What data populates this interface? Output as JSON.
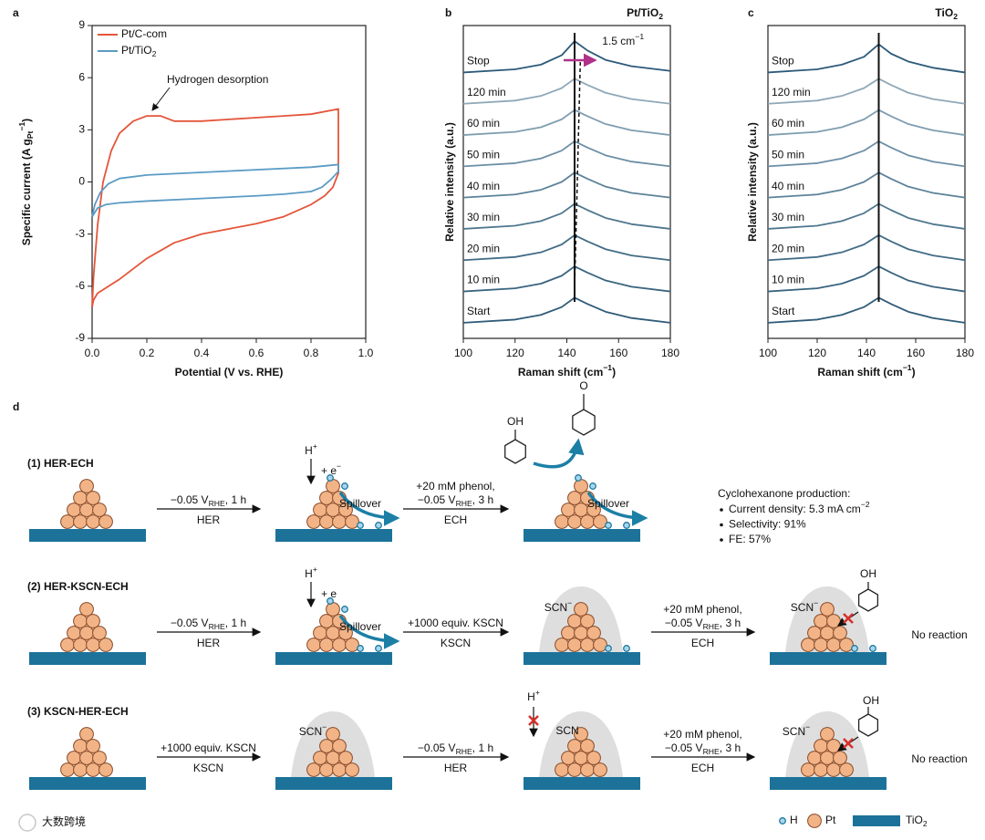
{
  "chart_data": [
    {
      "panel": "a",
      "type": "line",
      "xlabel": "Potential (V vs. RHE)",
      "ylabel": [
        "Specific current (A g",
        {
          "sub": "Pt"
        },
        {
          "sup": "−1"
        },
        ")"
      ],
      "xlim": [
        0,
        1
      ],
      "ylim": [
        -9,
        9
      ],
      "xticks": [
        {
          "value": 0,
          "label": "0.0"
        },
        0.2,
        0.4,
        0.6,
        0.8,
        {
          "value": 1,
          "label": "1.0"
        }
      ],
      "yticks": [
        -9,
        -6,
        -3,
        0,
        3,
        6,
        9
      ],
      "annotation": "Hydrogen desorption",
      "legend": "upper left",
      "series": [
        {
          "name": "Pt/C-com",
          "color": "#e4553a",
          "x": [
            0,
            0.005,
            0.02,
            0.04,
            0.07,
            0.1,
            0.15,
            0.2,
            0.25,
            0.3,
            0.4,
            0.5,
            0.6,
            0.7,
            0.8,
            0.9,
            0.9,
            0.88,
            0.85,
            0.8,
            0.7,
            0.6,
            0.5,
            0.4,
            0.3,
            0.2,
            0.1,
            0.05,
            0.02,
            0.005,
            0
          ],
          "values": [
            -7.2,
            -5.5,
            -2.5,
            0,
            1.8,
            2.8,
            3.5,
            3.8,
            3.8,
            3.5,
            3.5,
            3.6,
            3.7,
            3.8,
            3.9,
            4.2,
            0.5,
            -0.3,
            -0.8,
            -1.3,
            -2.0,
            -2.4,
            -2.7,
            -3.0,
            -3.5,
            -4.4,
            -5.6,
            -6.1,
            -6.4,
            -6.8,
            -7.2
          ]
        },
        {
          "name": [
            "Pt/TiO",
            {
              "sub": "2"
            }
          ],
          "color": "#5b9bc4",
          "x": [
            0,
            0.01,
            0.03,
            0.06,
            0.1,
            0.2,
            0.4,
            0.6,
            0.8,
            0.9,
            0.9,
            0.87,
            0.84,
            0.8,
            0.7,
            0.6,
            0.4,
            0.2,
            0.1,
            0.05,
            0.02,
            0
          ],
          "values": [
            -2.0,
            -1.3,
            -0.6,
            -0.1,
            0.2,
            0.4,
            0.55,
            0.7,
            0.85,
            1.0,
            0.6,
            0.1,
            -0.3,
            -0.55,
            -0.7,
            -0.8,
            -0.95,
            -1.1,
            -1.2,
            -1.3,
            -1.5,
            -2.0
          ]
        }
      ]
    },
    {
      "panel": "b",
      "type": "line",
      "title": [
        "Pt/TiO",
        {
          "sub": "2"
        }
      ],
      "xlabel": [
        "Raman shift (cm",
        {
          "sup": "−1"
        },
        ")"
      ],
      "ylabel": "Relative intensity (a.u.)",
      "xlim": [
        100,
        180
      ],
      "ylim": [
        0,
        10
      ],
      "xticks": [
        100,
        120,
        140,
        160,
        180
      ],
      "x": [
        100,
        120,
        130,
        138,
        143,
        148,
        155,
        165,
        180
      ],
      "reference_peak": 143,
      "shifted_peak": 144.5,
      "shift_label": [
        "1.5 cm",
        {
          "sup": "−1"
        }
      ],
      "series": [
        {
          "name": "Start",
          "color": "#2f5b78",
          "values": [
            0.5,
            0.6,
            0.75,
            1.0,
            1.3,
            1.1,
            0.85,
            0.65,
            0.5
          ]
        },
        {
          "name": "10 min",
          "color": "#3a6480",
          "values": [
            1.5,
            1.6,
            1.75,
            2.0,
            2.3,
            2.1,
            1.85,
            1.65,
            1.5
          ]
        },
        {
          "name": "20 min",
          "color": "#426c86",
          "values": [
            2.5,
            2.6,
            2.75,
            3.0,
            3.3,
            3.1,
            2.85,
            2.65,
            2.5
          ]
        },
        {
          "name": "30 min",
          "color": "#4f778f",
          "values": [
            3.5,
            3.6,
            3.75,
            4.0,
            4.3,
            4.1,
            3.85,
            3.65,
            3.5
          ]
        },
        {
          "name": "40 min",
          "color": "#5d8299",
          "values": [
            4.5,
            4.6,
            4.75,
            5.0,
            5.3,
            5.1,
            4.85,
            4.65,
            4.5
          ]
        },
        {
          "name": "50 min",
          "color": "#6d8fa5",
          "values": [
            5.5,
            5.6,
            5.75,
            6.0,
            6.3,
            6.1,
            5.85,
            5.65,
            5.5
          ]
        },
        {
          "name": "60 min",
          "color": "#7f9db0",
          "values": [
            6.5,
            6.6,
            6.75,
            7.0,
            7.3,
            7.1,
            6.85,
            6.65,
            6.5
          ]
        },
        {
          "name": "120 min",
          "color": "#8fa8b8",
          "values": [
            7.5,
            7.6,
            7.75,
            8.0,
            8.3,
            8.1,
            7.85,
            7.65,
            7.5
          ]
        },
        {
          "name": "Stop",
          "color": "#2c5a7a",
          "values": [
            8.5,
            8.6,
            8.75,
            9.05,
            9.5,
            9.2,
            8.9,
            8.7,
            8.55
          ]
        }
      ]
    },
    {
      "panel": "c",
      "type": "line",
      "title": [
        "TiO",
        {
          "sub": "2"
        }
      ],
      "xlabel": [
        "Raman shift (cm",
        {
          "sup": "−1"
        },
        ")"
      ],
      "ylabel": "Relative intensity (a.u.)",
      "xlim": [
        100,
        180
      ],
      "ylim": [
        0,
        10
      ],
      "xticks": [
        100,
        120,
        140,
        160,
        180
      ],
      "x": [
        100,
        120,
        130,
        139,
        145,
        150,
        157,
        167,
        180
      ],
      "reference_peak": 145,
      "series": [
        {
          "name": "Start",
          "color": "#2f5b78",
          "values": [
            0.5,
            0.6,
            0.75,
            1.0,
            1.3,
            1.1,
            0.85,
            0.65,
            0.5
          ]
        },
        {
          "name": "10 min",
          "color": "#3a6480",
          "values": [
            1.5,
            1.6,
            1.75,
            2.0,
            2.3,
            2.1,
            1.85,
            1.65,
            1.5
          ]
        },
        {
          "name": "20 min",
          "color": "#426c86",
          "values": [
            2.5,
            2.6,
            2.75,
            3.0,
            3.3,
            3.1,
            2.85,
            2.65,
            2.5
          ]
        },
        {
          "name": "30 min",
          "color": "#4f778f",
          "values": [
            3.5,
            3.6,
            3.75,
            4.0,
            4.3,
            4.1,
            3.85,
            3.65,
            3.5
          ]
        },
        {
          "name": "40 min",
          "color": "#5d8299",
          "values": [
            4.5,
            4.6,
            4.75,
            5.0,
            5.3,
            5.1,
            4.85,
            4.65,
            4.5
          ]
        },
        {
          "name": "50 min",
          "color": "#6d8fa5",
          "values": [
            5.5,
            5.6,
            5.75,
            6.0,
            6.3,
            6.1,
            5.85,
            5.65,
            5.5
          ]
        },
        {
          "name": "60 min",
          "color": "#7f9db0",
          "values": [
            6.5,
            6.6,
            6.75,
            7.0,
            7.3,
            7.1,
            6.85,
            6.65,
            6.5
          ]
        },
        {
          "name": "120 min",
          "color": "#8fa8b8",
          "values": [
            7.5,
            7.6,
            7.75,
            8.0,
            8.3,
            8.1,
            7.85,
            7.65,
            7.5
          ]
        },
        {
          "name": "Stop",
          "color": "#2c5a7a",
          "values": [
            8.5,
            8.6,
            8.75,
            9.0,
            9.4,
            9.1,
            8.85,
            8.65,
            8.5
          ]
        }
      ]
    }
  ],
  "diagram": {
    "panel": "d",
    "rows": [
      {
        "title": "(1) HER-ECH",
        "arrows": [
          {
            "above": [
              [
                "−0.05 V",
                {
                  "sub": "RHE"
                },
                ", 1 h"
              ]
            ],
            "below": "HER"
          },
          {
            "above": [
              "+20 mM phenol,",
              [
                "−0.05 V",
                {
                  "sub": "RHE"
                },
                ", 3 h"
              ]
            ],
            "below": "ECH"
          }
        ],
        "texts": [
          [
            "H",
            {
              "sup": "+"
            }
          ],
          [
            "+ e",
            {
              "sup": "−"
            }
          ],
          "Spillover",
          "OH",
          "O",
          "Spillover"
        ]
      },
      {
        "title": "(2) HER-KSCN-ECH",
        "arrows": [
          {
            "above": [
              [
                "−0.05 V",
                {
                  "sub": "RHE"
                },
                ", 1 h"
              ]
            ],
            "below": "HER"
          },
          {
            "above": [
              "+1000 equiv. KSCN"
            ],
            "below": "KSCN"
          },
          {
            "above": [
              "+20 mM phenol,",
              [
                "−0.05 V",
                {
                  "sub": "RHE"
                },
                ", 3 h"
              ]
            ],
            "below": "ECH"
          }
        ],
        "texts": [
          [
            "H",
            {
              "sup": "+"
            }
          ],
          "+ e",
          "Spillover",
          [
            "SCN",
            {
              "sup": "−"
            }
          ],
          [
            "SCN",
            {
              "sup": "−"
            }
          ],
          "OH",
          "No reaction"
        ]
      },
      {
        "title": "(3) KSCN-HER-ECH",
        "arrows": [
          {
            "above": [
              "+1000 equiv. KSCN"
            ],
            "below": "KSCN"
          },
          {
            "above": [
              [
                "−0.05 V",
                {
                  "sub": "RHE"
                },
                ", 1 h"
              ]
            ],
            "below": "HER"
          },
          {
            "above": [
              "+20 mM phenol,",
              [
                "−0.05 V",
                {
                  "sub": "RHE"
                },
                ", 3 h"
              ]
            ],
            "below": "ECH"
          }
        ],
        "texts": [
          [
            "SCN",
            {
              "sup": "−"
            }
          ],
          [
            "H",
            {
              "sup": "+"
            }
          ],
          "SCN",
          [
            "SCN",
            {
              "sup": "−"
            }
          ],
          "OH",
          "No reaction"
        ]
      }
    ],
    "production": {
      "title": "Cyclohexanone production:",
      "items": [
        [
          "Current density: 5.3 mA cm",
          {
            "sup": "−2"
          }
        ],
        "Selectivity: 91%",
        "FE: 57%"
      ]
    },
    "legend": [
      "H",
      "Pt",
      [
        "TiO",
        {
          "sub": "2"
        }
      ]
    ],
    "watermark": "大数跨境"
  }
}
